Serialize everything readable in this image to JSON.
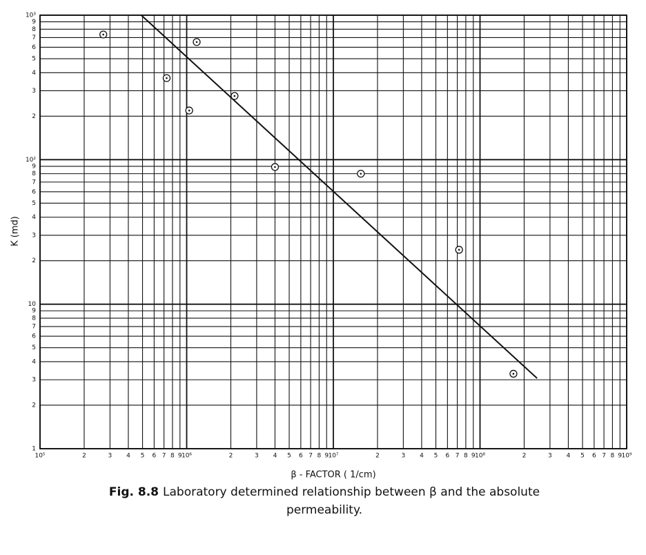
{
  "chart_data": {
    "type": "scatter",
    "x_label": "β - FACTOR ( 1/cm)",
    "y_label": "K (md)",
    "caption_label": "Fig. 8.8",
    "caption_text": "Laboratory determined relationship between β and the absolute permeability.",
    "log_x": true,
    "log_y": true,
    "grid": true,
    "color": "#111111",
    "points": {
      "x": [
        270000,
        730000,
        1040000,
        1170000,
        2120000,
        4000000,
        15400000,
        72000000,
        169000000
      ],
      "y": [
        735,
        367,
        219,
        652,
        276,
        89,
        80,
        23.8,
        3.3
      ]
    },
    "fit_line": {
      "x": [
        490000,
        245000000
      ],
      "y": [
        1000,
        3.07
      ]
    },
    "xlim": [
      100000,
      1000000000
    ],
    "ylim": [
      1,
      1000
    ],
    "xticks": [
      {
        "value": 100000,
        "label": "10⁵"
      },
      {
        "value": 200000,
        "label": "2"
      },
      {
        "value": 300000,
        "label": "3"
      },
      {
        "value": 400000,
        "label": "4"
      },
      {
        "value": 500000,
        "label": "5"
      },
      {
        "value": 600000,
        "label": "6"
      },
      {
        "value": 700000,
        "label": "7"
      },
      {
        "value": 800000,
        "label": "8"
      },
      {
        "value": 900000,
        "label": "9"
      },
      {
        "value": 1000000,
        "label": "10⁶"
      },
      {
        "value": 2000000,
        "label": "2"
      },
      {
        "value": 3000000,
        "label": "3"
      },
      {
        "value": 4000000,
        "label": "4"
      },
      {
        "value": 5000000,
        "label": "5"
      },
      {
        "value": 6000000,
        "label": "6"
      },
      {
        "value": 7000000,
        "label": "7"
      },
      {
        "value": 8000000,
        "label": "8"
      },
      {
        "value": 9000000,
        "label": "9"
      },
      {
        "value": 10000000,
        "label": "10⁷"
      },
      {
        "value": 20000000,
        "label": "2"
      },
      {
        "value": 30000000,
        "label": "3"
      },
      {
        "value": 40000000,
        "label": "4"
      },
      {
        "value": 50000000,
        "label": "5"
      },
      {
        "value": 60000000,
        "label": "6"
      },
      {
        "value": 70000000,
        "label": "7"
      },
      {
        "value": 80000000,
        "label": "8"
      },
      {
        "value": 90000000,
        "label": "9"
      },
      {
        "value": 100000000,
        "label": "10⁸"
      },
      {
        "value": 200000000,
        "label": "2"
      },
      {
        "value": 300000000,
        "label": "3"
      },
      {
        "value": 400000000,
        "label": "4"
      },
      {
        "value": 500000000,
        "label": "5"
      },
      {
        "value": 600000000,
        "label": "6"
      },
      {
        "value": 700000000,
        "label": "7"
      },
      {
        "value": 800000000,
        "label": "8"
      },
      {
        "value": 900000000,
        "label": "9"
      },
      {
        "value": 1000000000,
        "label": "10⁹"
      }
    ],
    "yticks": [
      1,
      2,
      3,
      4,
      5,
      6,
      7,
      8,
      9,
      10,
      {
        "value": 20,
        "label": "2"
      },
      {
        "value": 30,
        "label": "3"
      },
      {
        "value": 40,
        "label": "4"
      },
      {
        "value": 50,
        "label": "5"
      },
      {
        "value": 60,
        "label": "6"
      },
      {
        "value": 70,
        "label": "7"
      },
      {
        "value": 80,
        "label": "8"
      },
      {
        "value": 90,
        "label": "9"
      },
      {
        "value": 100,
        "label": "10²"
      },
      {
        "value": 200,
        "label": "2"
      },
      {
        "value": 300,
        "label": "3"
      },
      {
        "value": 400,
        "label": "4"
      },
      {
        "value": 500,
        "label": "5"
      },
      {
        "value": 600,
        "label": "6"
      },
      {
        "value": 700,
        "label": "7"
      },
      {
        "value": 800,
        "label": "8"
      },
      {
        "value": 900,
        "label": "9"
      },
      {
        "value": 1000,
        "label": "10³"
      }
    ]
  }
}
